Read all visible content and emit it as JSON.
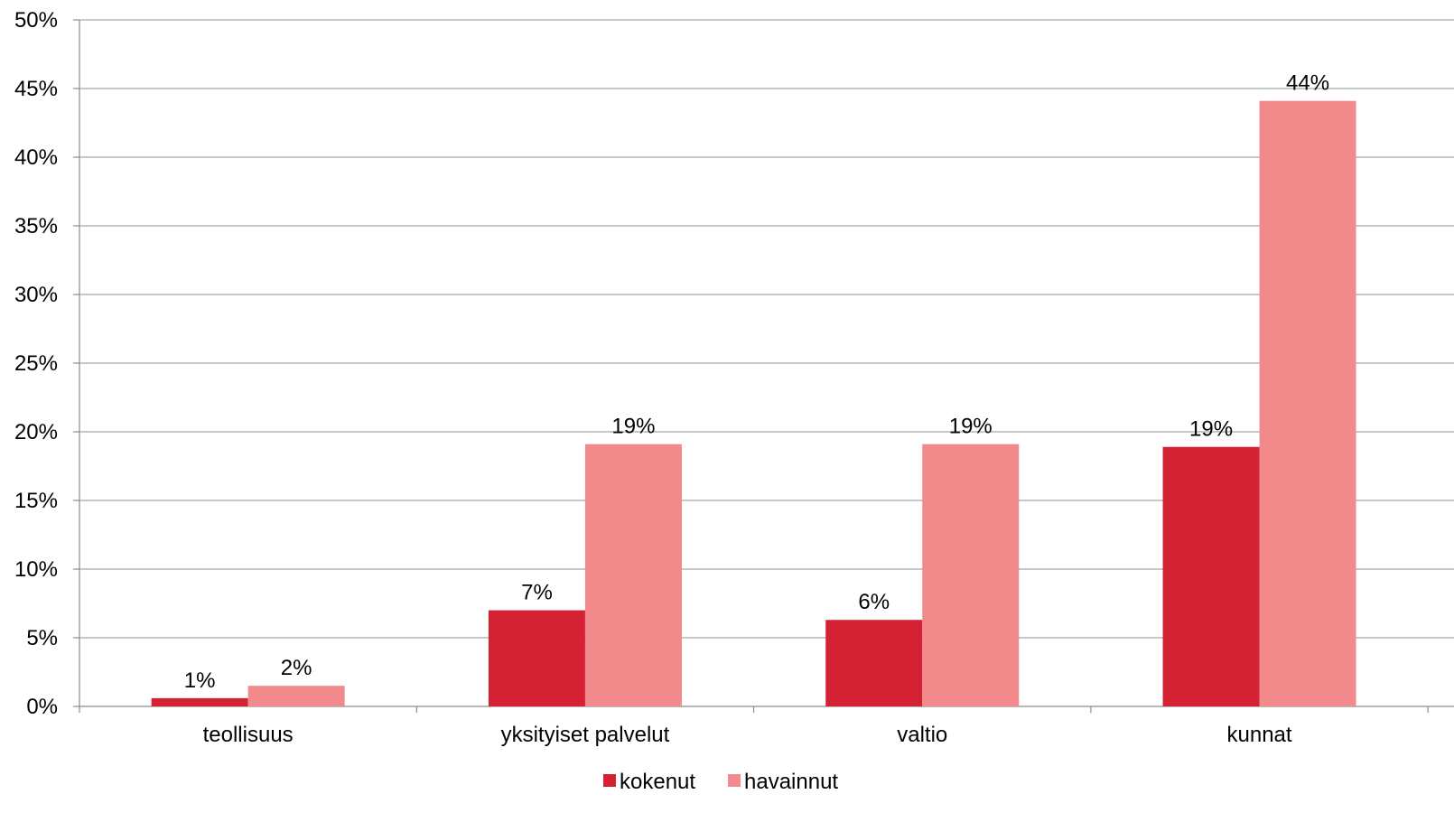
{
  "chart_data": {
    "type": "bar",
    "categories": [
      "teollisuus",
      "yksityiset palvelut",
      "valtio",
      "kunnat"
    ],
    "series": [
      {
        "name": "kokenut",
        "color": "#d42133",
        "values": [
          0.6,
          7.0,
          6.3,
          18.9
        ],
        "labels": [
          "1%",
          "7%",
          "6%",
          "19%"
        ]
      },
      {
        "name": "havainnut",
        "color": "#f2898b",
        "values": [
          1.5,
          19.1,
          19.1,
          44.1
        ],
        "labels": [
          "2%",
          "19%",
          "19%",
          "44%"
        ]
      }
    ],
    "ylim": [
      0,
      50
    ],
    "y_ticks": [
      "0%",
      "5%",
      "10%",
      "15%",
      "20%",
      "25%",
      "30%",
      "35%",
      "40%",
      "45%",
      "50%"
    ],
    "grid": true,
    "legend_position": "bottom",
    "xlabel": "",
    "ylabel": "",
    "title": ""
  }
}
